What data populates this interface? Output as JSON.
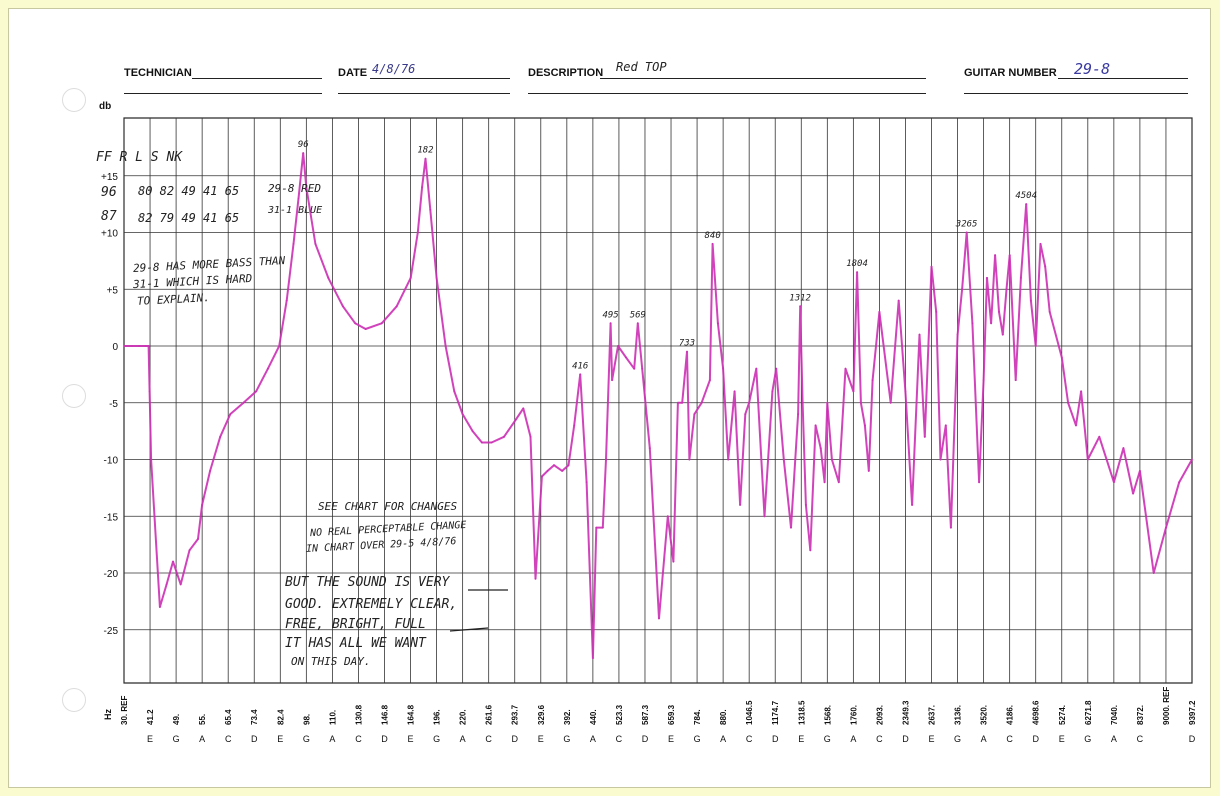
{
  "header": {
    "technician_label": "TECHNICIAN",
    "technician_value": "",
    "date_label": "DATE",
    "date_value": "4/8/76",
    "description_label": "DESCRIPTION",
    "description_value": "Red TOP",
    "guitar_number_label": "GUITAR NUMBER",
    "guitar_number_value": "29-8"
  },
  "notes": {
    "table_header": "FF   R  L  S  NK",
    "row1_freq": "96",
    "row1_values": "80 82 49 41 65",
    "row1_tag": "29-8 RED",
    "row2_freq": "87",
    "row2_values": "82 79 49 41 65",
    "row2_tag": "31-1 BLUE",
    "bass_note_1": "29-8 HAS MORE BASS THAN",
    "bass_note_2": "31-1 WHICH IS HARD",
    "bass_note_3": "TO EXPLAIN.",
    "see_chart": "SEE CHART FOR CHANGES",
    "no_change_1": "NO REAL PERCEPTABLE CHANGE",
    "no_change_2": "IN CHART OVER 29-5  4/8/76",
    "sound_1": "BUT THE SOUND IS VERY",
    "sound_2": "GOOD. EXTREMELY CLEAR,",
    "sound_3": "FREE, BRIGHT, FULL",
    "sound_4": "IT HAS ALL WE WANT",
    "sound_5": "ON THIS DAY."
  },
  "chart_data": {
    "type": "line",
    "ylabel": "db",
    "xlabel": "Hz",
    "ylim": [
      -30,
      20
    ],
    "yticks": [
      "+15",
      "+10",
      "+5",
      "0",
      "-5",
      "-10",
      "-15",
      "-20",
      "-25"
    ],
    "ytick_values": [
      15,
      10,
      5,
      0,
      -5,
      -10,
      -15,
      -20,
      -25
    ],
    "x_ticks": [
      {
        "freq": "30. REF",
        "note": ""
      },
      {
        "freq": "41.2",
        "note": "E"
      },
      {
        "freq": "49.",
        "note": "G"
      },
      {
        "freq": "55.",
        "note": "A"
      },
      {
        "freq": "65.4",
        "note": "C"
      },
      {
        "freq": "73.4",
        "note": "D"
      },
      {
        "freq": "82.4",
        "note": "E"
      },
      {
        "freq": "98.",
        "note": "G"
      },
      {
        "freq": "110.",
        "note": "A"
      },
      {
        "freq": "130.8",
        "note": "C"
      },
      {
        "freq": "146.8",
        "note": "D"
      },
      {
        "freq": "164.8",
        "note": "E"
      },
      {
        "freq": "196.",
        "note": "G"
      },
      {
        "freq": "220.",
        "note": "A"
      },
      {
        "freq": "261.6",
        "note": "C"
      },
      {
        "freq": "293.7",
        "note": "D"
      },
      {
        "freq": "329.6",
        "note": "E"
      },
      {
        "freq": "392.",
        "note": "G"
      },
      {
        "freq": "440.",
        "note": "A"
      },
      {
        "freq": "523.3",
        "note": "C"
      },
      {
        "freq": "587.3",
        "note": "D"
      },
      {
        "freq": "659.3",
        "note": "E"
      },
      {
        "freq": "784.",
        "note": "G"
      },
      {
        "freq": "880.",
        "note": "A"
      },
      {
        "freq": "1046.5",
        "note": "C"
      },
      {
        "freq": "1174.7",
        "note": "D"
      },
      {
        "freq": "1318.5",
        "note": "E"
      },
      {
        "freq": "1568.",
        "note": "G"
      },
      {
        "freq": "1760.",
        "note": "A"
      },
      {
        "freq": "2093.",
        "note": "C"
      },
      {
        "freq": "2349.3",
        "note": "D"
      },
      {
        "freq": "2637.",
        "note": "E"
      },
      {
        "freq": "3136.",
        "note": "G"
      },
      {
        "freq": "3520.",
        "note": "A"
      },
      {
        "freq": "4186.",
        "note": "C"
      },
      {
        "freq": "4698.6",
        "note": "D"
      },
      {
        "freq": "5274.",
        "note": "E"
      },
      {
        "freq": "6271.8",
        "note": "G"
      },
      {
        "freq": "7040.",
        "note": "A"
      },
      {
        "freq": "8372.",
        "note": "C"
      },
      {
        "freq": "9000. REF",
        "note": ""
      },
      {
        "freq": "9397.2",
        "note": "D"
      }
    ],
    "peak_labels": [
      {
        "label": "96",
        "x": 96,
        "y": 17
      },
      {
        "label": "182",
        "x": 182,
        "y": 16.5
      },
      {
        "label": "416",
        "x": 416,
        "y": -2.5
      },
      {
        "label": "495",
        "x": 495,
        "y": 2
      },
      {
        "label": "569",
        "x": 569,
        "y": 2
      },
      {
        "label": "733",
        "x": 733,
        "y": -0.5
      },
      {
        "label": "840",
        "x": 840,
        "y": 9
      },
      {
        "label": "1312",
        "x": 1312,
        "y": 3.5
      },
      {
        "label": "1804",
        "x": 1804,
        "y": 6.5
      },
      {
        "label": "3265",
        "x": 3265,
        "y": 10
      },
      {
        "label": "4504",
        "x": 4504,
        "y": 12.5
      }
    ],
    "series": [
      {
        "color": "#cc2fb4",
        "points": [
          [
            30,
            0
          ],
          [
            33,
            0
          ],
          [
            36,
            0
          ],
          [
            39,
            0
          ],
          [
            40.5,
            0
          ],
          [
            41,
            -4
          ],
          [
            41.5,
            -10
          ],
          [
            44,
            -23
          ],
          [
            46,
            -21
          ],
          [
            48,
            -19
          ],
          [
            50,
            -21
          ],
          [
            52,
            -18
          ],
          [
            54,
            -17
          ],
          [
            55,
            -14
          ],
          [
            58,
            -11
          ],
          [
            62,
            -8
          ],
          [
            66,
            -6
          ],
          [
            70,
            -5
          ],
          [
            74,
            -4
          ],
          [
            78,
            -2
          ],
          [
            82,
            0
          ],
          [
            86,
            4
          ],
          [
            90,
            9
          ],
          [
            93,
            13
          ],
          [
            96,
            17
          ],
          [
            98,
            14
          ],
          [
            102,
            9
          ],
          [
            108,
            6
          ],
          [
            118,
            3.5
          ],
          [
            128,
            2
          ],
          [
            135,
            1.5
          ],
          [
            145,
            2
          ],
          [
            155,
            3.5
          ],
          [
            165,
            6
          ],
          [
            173,
            10
          ],
          [
            178,
            14
          ],
          [
            182,
            16.5
          ],
          [
            188,
            12
          ],
          [
            196,
            6
          ],
          [
            204,
            0
          ],
          [
            212,
            -4
          ],
          [
            220,
            -6
          ],
          [
            235,
            -7.5
          ],
          [
            250,
            -8.5
          ],
          [
            265,
            -8.5
          ],
          [
            280,
            -8
          ],
          [
            295,
            -6.5
          ],
          [
            305,
            -5.5
          ],
          [
            315,
            -8
          ],
          [
            322,
            -20.5
          ],
          [
            332,
            -11.5
          ],
          [
            345,
            -11
          ],
          [
            360,
            -10.5
          ],
          [
            380,
            -11
          ],
          [
            395,
            -10.5
          ],
          [
            405,
            -7
          ],
          [
            416,
            -2.5
          ],
          [
            428,
            -12
          ],
          [
            440,
            -27.5
          ],
          [
            450,
            -16
          ],
          [
            470,
            -16
          ],
          [
            480,
            -10
          ],
          [
            495,
            2
          ],
          [
            500,
            -3
          ],
          [
            520,
            0
          ],
          [
            540,
            -1
          ],
          [
            560,
            -2
          ],
          [
            569,
            2
          ],
          [
            580,
            -2
          ],
          [
            600,
            -9
          ],
          [
            625,
            -24
          ],
          [
            650,
            -15
          ],
          [
            670,
            -19
          ],
          [
            690,
            -5
          ],
          [
            710,
            -5
          ],
          [
            733,
            -0.5
          ],
          [
            745,
            -10
          ],
          [
            770,
            -6
          ],
          [
            800,
            -5
          ],
          [
            830,
            -3
          ],
          [
            840,
            9
          ],
          [
            860,
            2
          ],
          [
            880,
            -2
          ],
          [
            910,
            -10
          ],
          [
            950,
            -4
          ],
          [
            985,
            -14
          ],
          [
            1020,
            -6
          ],
          [
            1046,
            -5
          ],
          [
            1080,
            -2
          ],
          [
            1120,
            -15
          ],
          [
            1160,
            -4
          ],
          [
            1180,
            -2
          ],
          [
            1220,
            -10
          ],
          [
            1260,
            -16
          ],
          [
            1300,
            -6
          ],
          [
            1312,
            3.5
          ],
          [
            1330,
            -5
          ],
          [
            1360,
            -14
          ],
          [
            1400,
            -18
          ],
          [
            1450,
            -7
          ],
          [
            1500,
            -9
          ],
          [
            1540,
            -12
          ],
          [
            1568,
            -5
          ],
          [
            1600,
            -10
          ],
          [
            1650,
            -12
          ],
          [
            1700,
            -2
          ],
          [
            1760,
            -4
          ],
          [
            1804,
            6.5
          ],
          [
            1850,
            -5
          ],
          [
            1900,
            -7
          ],
          [
            1950,
            -11
          ],
          [
            2000,
            -3
          ],
          [
            2093,
            3
          ],
          [
            2200,
            -5
          ],
          [
            2280,
            4
          ],
          [
            2349,
            -4
          ],
          [
            2420,
            -14
          ],
          [
            2500,
            1
          ],
          [
            2560,
            -8
          ],
          [
            2637,
            7
          ],
          [
            2720,
            3
          ],
          [
            2800,
            -10
          ],
          [
            2900,
            -7
          ],
          [
            3000,
            -16
          ],
          [
            3136,
            1
          ],
          [
            3200,
            5
          ],
          [
            3265,
            10
          ],
          [
            3350,
            2
          ],
          [
            3450,
            -12
          ],
          [
            3520,
            -3
          ],
          [
            3600,
            6
          ],
          [
            3700,
            2
          ],
          [
            3800,
            8
          ],
          [
            3900,
            3
          ],
          [
            4000,
            1
          ],
          [
            4100,
            5
          ],
          [
            4186,
            8
          ],
          [
            4300,
            -3
          ],
          [
            4400,
            6
          ],
          [
            4504,
            12.5
          ],
          [
            4600,
            4
          ],
          [
            4698,
            0
          ],
          [
            4800,
            9
          ],
          [
            4900,
            7
          ],
          [
            5000,
            3
          ],
          [
            5274,
            -1
          ],
          [
            5500,
            -5
          ],
          [
            5800,
            -7
          ],
          [
            6000,
            -4
          ],
          [
            6271,
            -10
          ],
          [
            6600,
            -8
          ],
          [
            7040,
            -12
          ],
          [
            7500,
            -9
          ],
          [
            8000,
            -13
          ],
          [
            8372,
            -11
          ],
          [
            8700,
            -20
          ],
          [
            9000,
            -16
          ],
          [
            9200,
            -12
          ],
          [
            9397,
            -10
          ]
        ]
      }
    ],
    "grid": true
  }
}
